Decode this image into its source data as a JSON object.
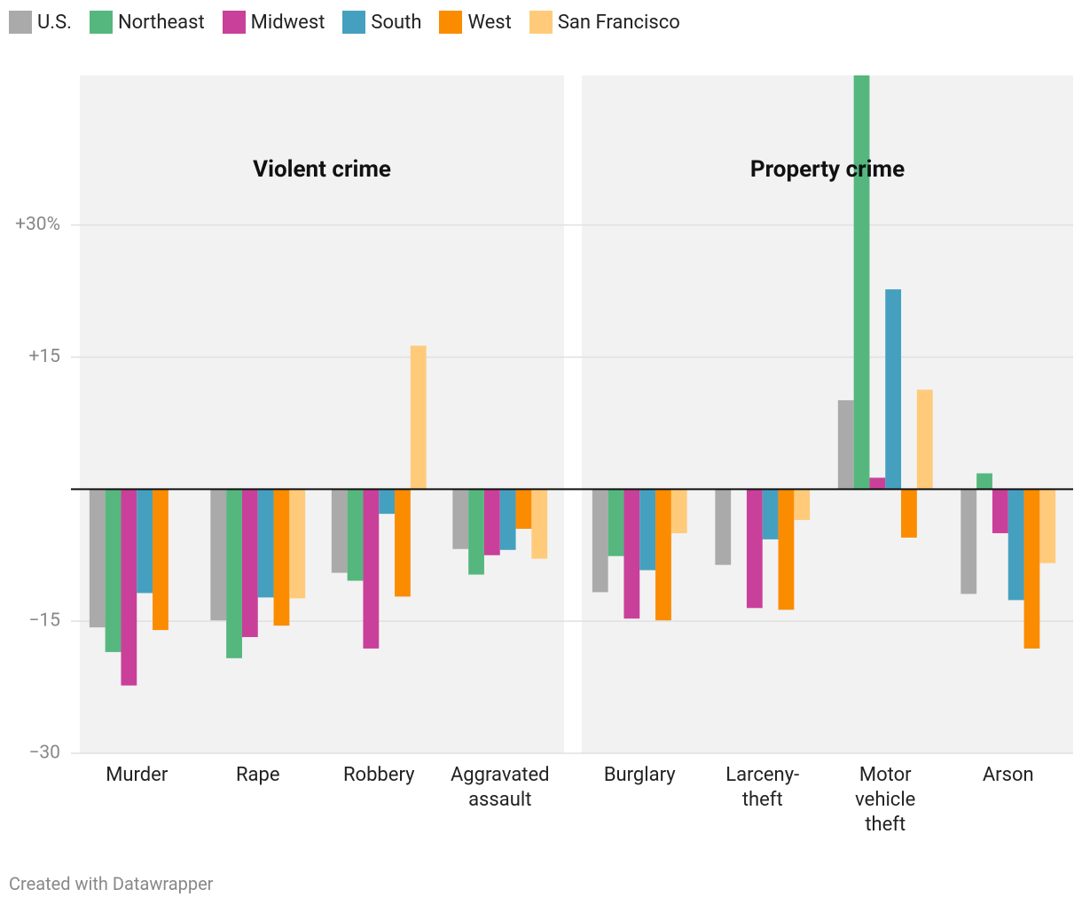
{
  "chart_data": {
    "type": "bar",
    "panels": [
      {
        "title": "Violent crime",
        "categories": [
          "Murder",
          "Rape",
          "Robbery",
          "Aggravated assault"
        ]
      },
      {
        "title": "Property crime",
        "categories": [
          "Burglary",
          "Larceny-theft",
          "Motor vehicle theft",
          "Arson"
        ]
      }
    ],
    "series": [
      {
        "name": "U.S.",
        "color": "#aaaaaa",
        "values": [
          -15.7,
          -14.9,
          -9.5,
          -6.8,
          -11.7,
          -8.6,
          10.1,
          -11.9
        ]
      },
      {
        "name": "Northeast",
        "color": "#55b77e",
        "values": [
          -18.5,
          -19.2,
          -10.4,
          -9.7,
          -7.6,
          null,
          47,
          1.8
        ]
      },
      {
        "name": "Midwest",
        "color": "#c9409a",
        "values": [
          -22.3,
          -16.8,
          -18.1,
          -7.5,
          -14.7,
          -13.5,
          1.3,
          -5.0
        ]
      },
      {
        "name": "South",
        "color": "#45a0bf",
        "values": [
          -11.8,
          -12.3,
          -2.8,
          -6.9,
          -9.2,
          -5.7,
          22.7,
          -12.6
        ]
      },
      {
        "name": "West",
        "color": "#fb8c00",
        "values": [
          -16.0,
          -15.5,
          -12.2,
          -4.5,
          -14.9,
          -13.7,
          -5.5,
          -18.1
        ]
      },
      {
        "name": "San Francisco",
        "color": "#ffcb7a",
        "values": [
          null,
          -12.4,
          16.3,
          -7.9,
          -5.0,
          -3.5,
          11.3,
          -8.4
        ]
      }
    ],
    "ylim": [
      -30,
      47
    ],
    "yticks": [
      {
        "value": 30,
        "label": "+30%"
      },
      {
        "value": 15,
        "label": "+15"
      },
      {
        "value": -15,
        "label": "−15"
      },
      {
        "value": -30,
        "label": "−30"
      }
    ],
    "grid": true,
    "legend": "top-left",
    "credit": "Created with Datawrapper"
  }
}
